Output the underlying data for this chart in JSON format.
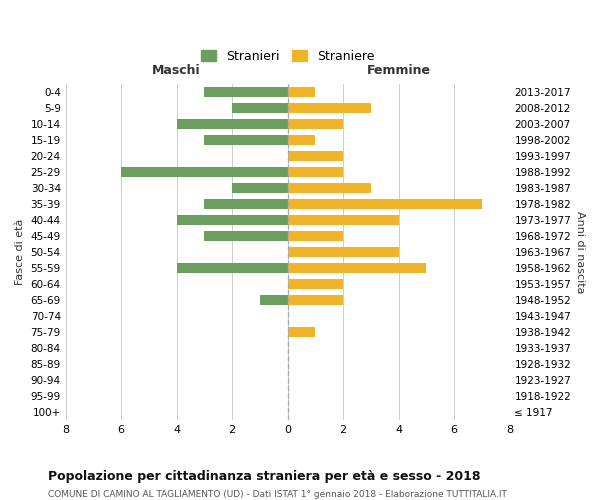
{
  "age_groups": [
    "100+",
    "95-99",
    "90-94",
    "85-89",
    "80-84",
    "75-79",
    "70-74",
    "65-69",
    "60-64",
    "55-59",
    "50-54",
    "45-49",
    "40-44",
    "35-39",
    "30-34",
    "25-29",
    "20-24",
    "15-19",
    "10-14",
    "5-9",
    "0-4"
  ],
  "birth_years": [
    "≤ 1917",
    "1918-1922",
    "1923-1927",
    "1928-1932",
    "1933-1937",
    "1938-1942",
    "1943-1947",
    "1948-1952",
    "1953-1957",
    "1958-1962",
    "1963-1967",
    "1968-1972",
    "1973-1977",
    "1978-1982",
    "1983-1987",
    "1988-1992",
    "1993-1997",
    "1998-2002",
    "2003-2007",
    "2008-2012",
    "2013-2017"
  ],
  "maschi": [
    0,
    0,
    0,
    0,
    0,
    0,
    0,
    1,
    0,
    4,
    0,
    3,
    4,
    3,
    2,
    6,
    0,
    3,
    4,
    2,
    3
  ],
  "femmine": [
    0,
    0,
    0,
    0,
    0,
    1,
    0,
    2,
    2,
    5,
    4,
    2,
    4,
    7,
    3,
    2,
    2,
    1,
    2,
    3,
    1
  ],
  "color_maschi": "#6b9e5e",
  "color_femmine": "#f0b429",
  "title": "Popolazione per cittadinanza straniera per età e sesso - 2018",
  "subtitle": "COMUNE DI CAMINO AL TAGLIAMENTO (UD) - Dati ISTAT 1° gennaio 2018 - Elaborazione TUTTITALIA.IT",
  "ylabel_left": "Fasce di età",
  "ylabel_right": "Anni di nascita",
  "xlabel_left": "Maschi",
  "xlabel_top": "Femmine",
  "legend_stranieri": "Stranieri",
  "legend_straniere": "Straniere",
  "xlim": 8,
  "background_color": "#ffffff",
  "grid_color": "#cccccc"
}
